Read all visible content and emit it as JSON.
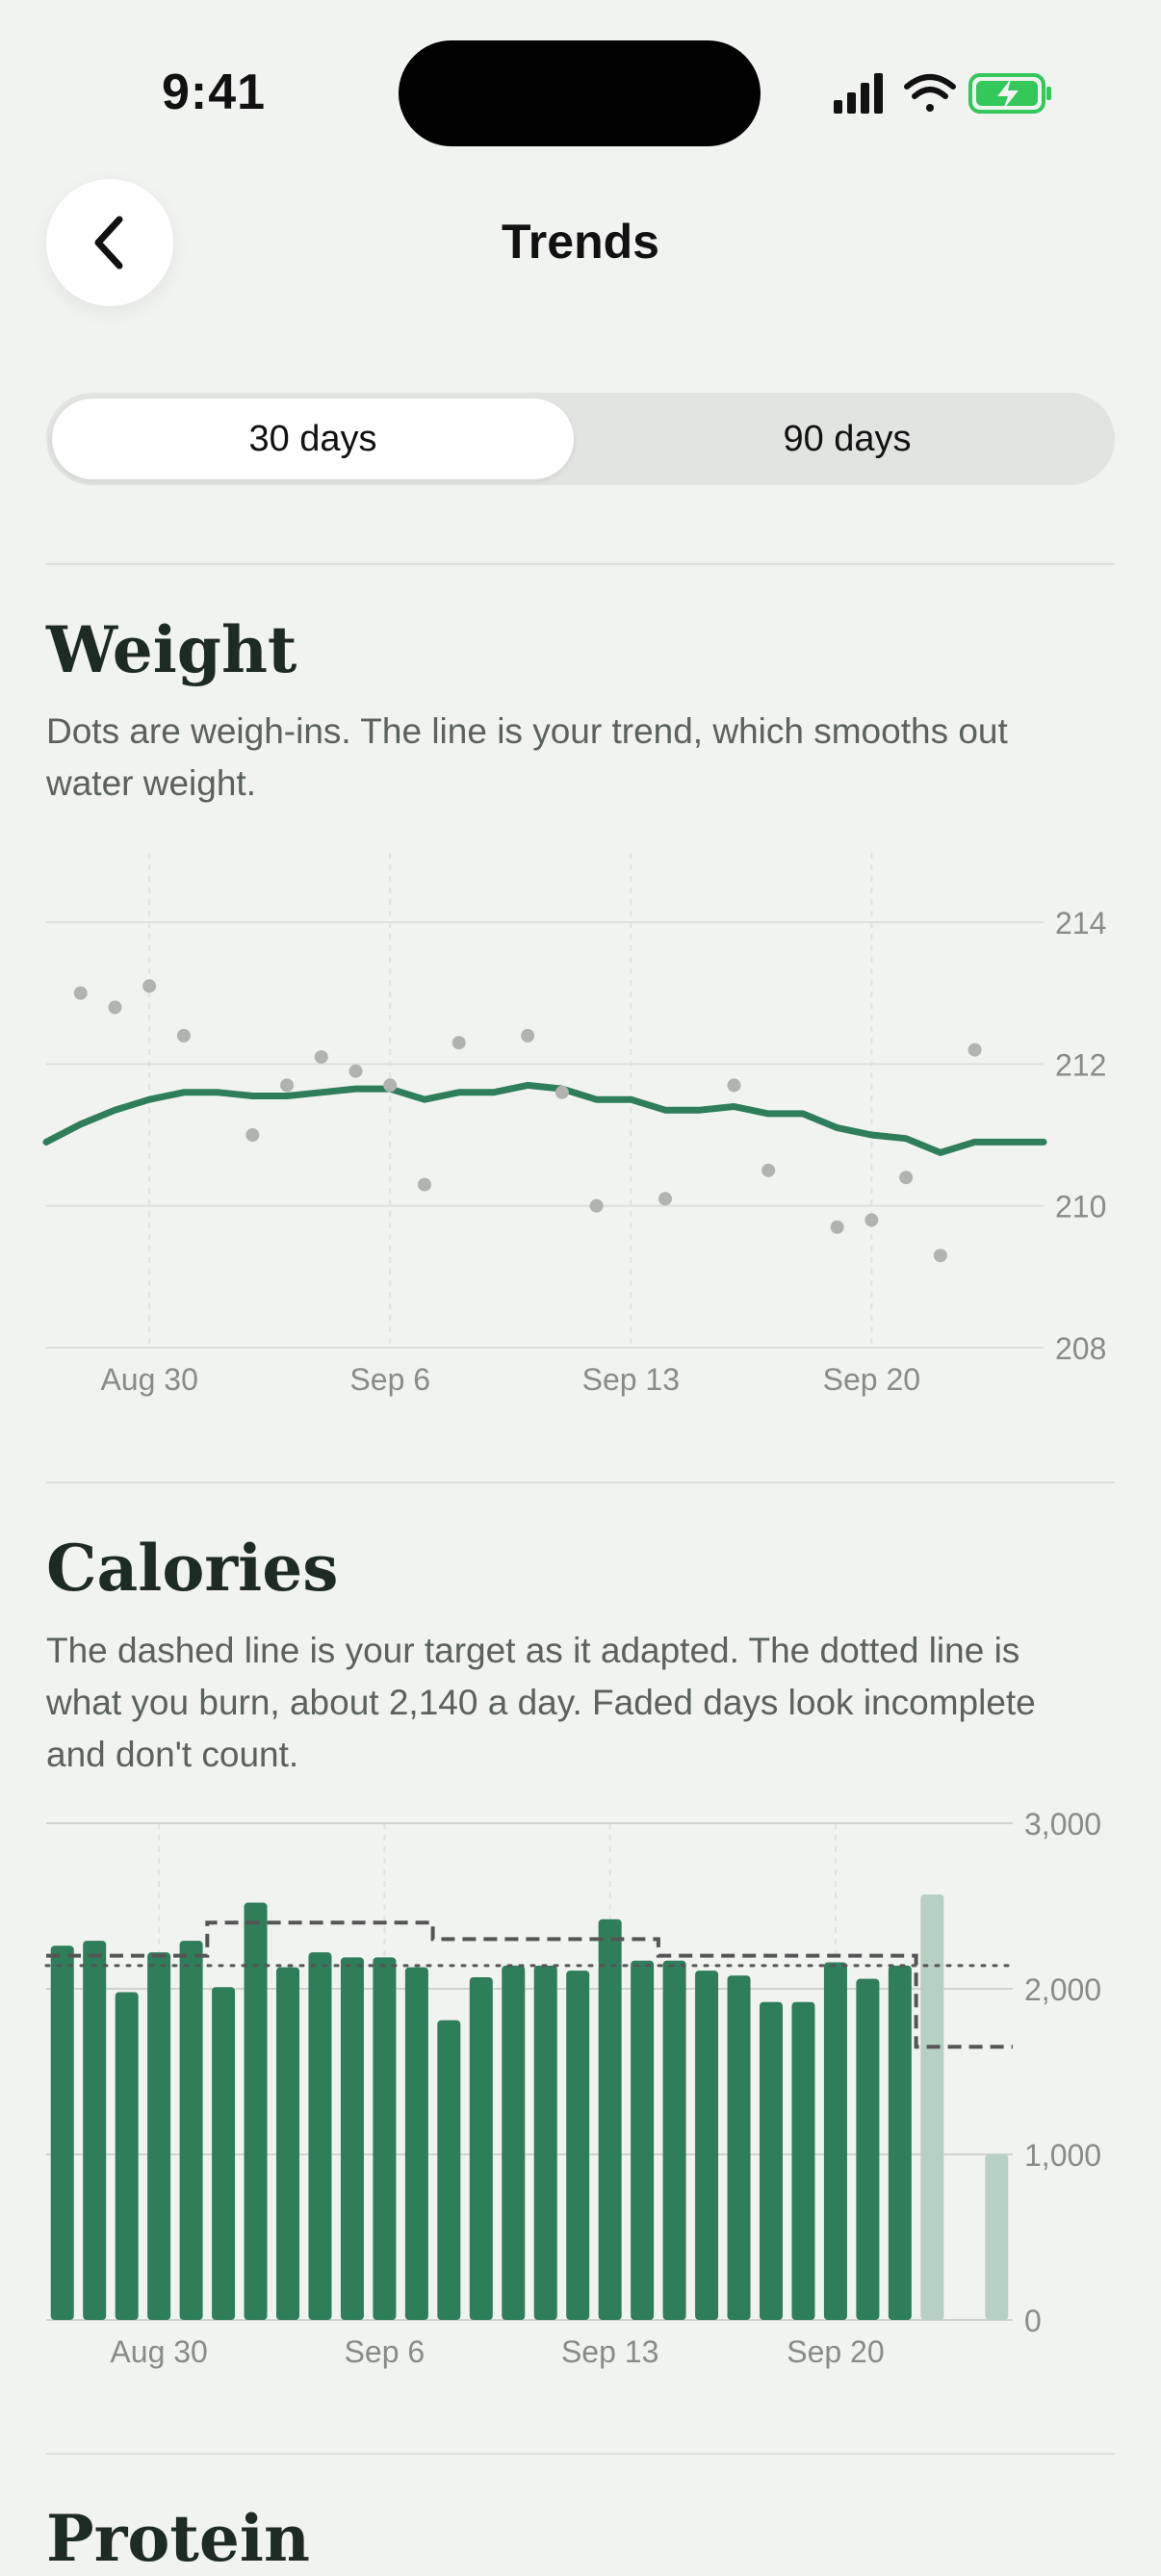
{
  "status_bar": {
    "time": "9:41"
  },
  "nav": {
    "title": "Trends",
    "back_icon": "chevron-left-icon"
  },
  "range_selector": {
    "options": [
      "30 days",
      "90 days"
    ],
    "selected": "30 days"
  },
  "weight": {
    "title": "Weight",
    "description": "Dots are weigh-ins. The line is your trend, which smooths out water weight."
  },
  "calories": {
    "title": "Calories",
    "description": "The dashed line is your target as it adapted. The dotted line is what you burn, about 2,140 a day. Faded days look incomplete and don't count."
  },
  "next_section": {
    "title": "Protein"
  },
  "colors": {
    "accent": "#2e7d5b",
    "faded": "#b6d1c4",
    "background": "#f1f3f0"
  },
  "chart_data": [
    {
      "type": "scatter",
      "title": "",
      "ylim": [
        208,
        214
      ],
      "yticks": [
        "214",
        "212",
        "210",
        "208"
      ],
      "xticks": [
        {
          "label": "Aug 30",
          "day": 3
        },
        {
          "label": "Sep 6",
          "day": 10
        },
        {
          "label": "Sep 13",
          "day": 17
        },
        {
          "label": "Sep 20",
          "day": 24
        }
      ],
      "xdomain": [
        0,
        29
      ],
      "series": [
        {
          "kind": "points",
          "points": [
            [
              1,
              213.0
            ],
            [
              2,
              212.8
            ],
            [
              3,
              213.1
            ],
            [
              4,
              212.4
            ],
            [
              6,
              211.0
            ],
            [
              7,
              211.7
            ],
            [
              8,
              212.1
            ],
            [
              9,
              211.9
            ],
            [
              10,
              211.7
            ],
            [
              11,
              210.3
            ],
            [
              12,
              212.3
            ],
            [
              14,
              212.4
            ],
            [
              15,
              211.6
            ],
            [
              16,
              210.0
            ],
            [
              18,
              210.1
            ],
            [
              20,
              211.7
            ],
            [
              21,
              210.5
            ],
            [
              23,
              209.7
            ],
            [
              24,
              209.8
            ],
            [
              25,
              210.4
            ],
            [
              26,
              209.3
            ],
            [
              27,
              212.2
            ]
          ]
        },
        {
          "kind": "line",
          "points": [
            [
              0,
              210.9
            ],
            [
              1,
              211.15
            ],
            [
              2,
              211.35
            ],
            [
              3,
              211.5
            ],
            [
              4,
              211.6
            ],
            [
              5,
              211.6
            ],
            [
              6,
              211.55
            ],
            [
              7,
              211.55
            ],
            [
              8,
              211.6
            ],
            [
              9,
              211.65
            ],
            [
              10,
              211.65
            ],
            [
              11,
              211.5
            ],
            [
              12,
              211.6
            ],
            [
              13,
              211.6
            ],
            [
              14,
              211.7
            ],
            [
              15,
              211.65
            ],
            [
              16,
              211.5
            ],
            [
              17,
              211.5
            ],
            [
              18,
              211.35
            ],
            [
              19,
              211.35
            ],
            [
              20,
              211.4
            ],
            [
              21,
              211.3
            ],
            [
              22,
              211.3
            ],
            [
              23,
              211.1
            ],
            [
              24,
              211.0
            ],
            [
              25,
              210.95
            ],
            [
              26,
              210.75
            ],
            [
              27,
              210.9
            ],
            [
              28,
              210.9
            ],
            [
              29,
              210.9
            ]
          ]
        }
      ]
    },
    {
      "type": "bar",
      "title": "",
      "ylim": [
        0,
        3000
      ],
      "yticks": [
        "3,000",
        "2,000",
        "1,000",
        "0"
      ],
      "xticks": [
        {
          "label": "Aug 30",
          "day": 3
        },
        {
          "label": "Sep 6",
          "day": 10
        },
        {
          "label": "Sep 13",
          "day": 17
        },
        {
          "label": "Sep 20",
          "day": 24
        }
      ],
      "bars": [
        {
          "value": 2260
        },
        {
          "value": 2290
        },
        {
          "value": 1980
        },
        {
          "value": 2220
        },
        {
          "value": 2290
        },
        {
          "value": 2010
        },
        {
          "value": 2520
        },
        {
          "value": 2130
        },
        {
          "value": 2220
        },
        {
          "value": 2190
        },
        {
          "value": 2190
        },
        {
          "value": 2130
        },
        {
          "value": 1810
        },
        {
          "value": 2070
        },
        {
          "value": 2140
        },
        {
          "value": 2140
        },
        {
          "value": 2110
        },
        {
          "value": 2420
        },
        {
          "value": 2170
        },
        {
          "value": 2170
        },
        {
          "value": 2110
        },
        {
          "value": 2080
        },
        {
          "value": 1920
        },
        {
          "value": 1920
        },
        {
          "value": 2160
        },
        {
          "value": 2060
        },
        {
          "value": 2140
        },
        {
          "value": 2570,
          "faded": true
        },
        {
          "value": null
        },
        {
          "value": 1000,
          "faded": true
        }
      ],
      "target": [
        2200,
        2200,
        2200,
        2200,
        2200,
        2400,
        2400,
        2400,
        2400,
        2400,
        2400,
        2400,
        2300,
        2300,
        2300,
        2300,
        2300,
        2300,
        2300,
        2200,
        2200,
        2200,
        2200,
        2200,
        2200,
        2200,
        2200,
        1650,
        1650,
        1650
      ],
      "burn": 2140
    }
  ]
}
